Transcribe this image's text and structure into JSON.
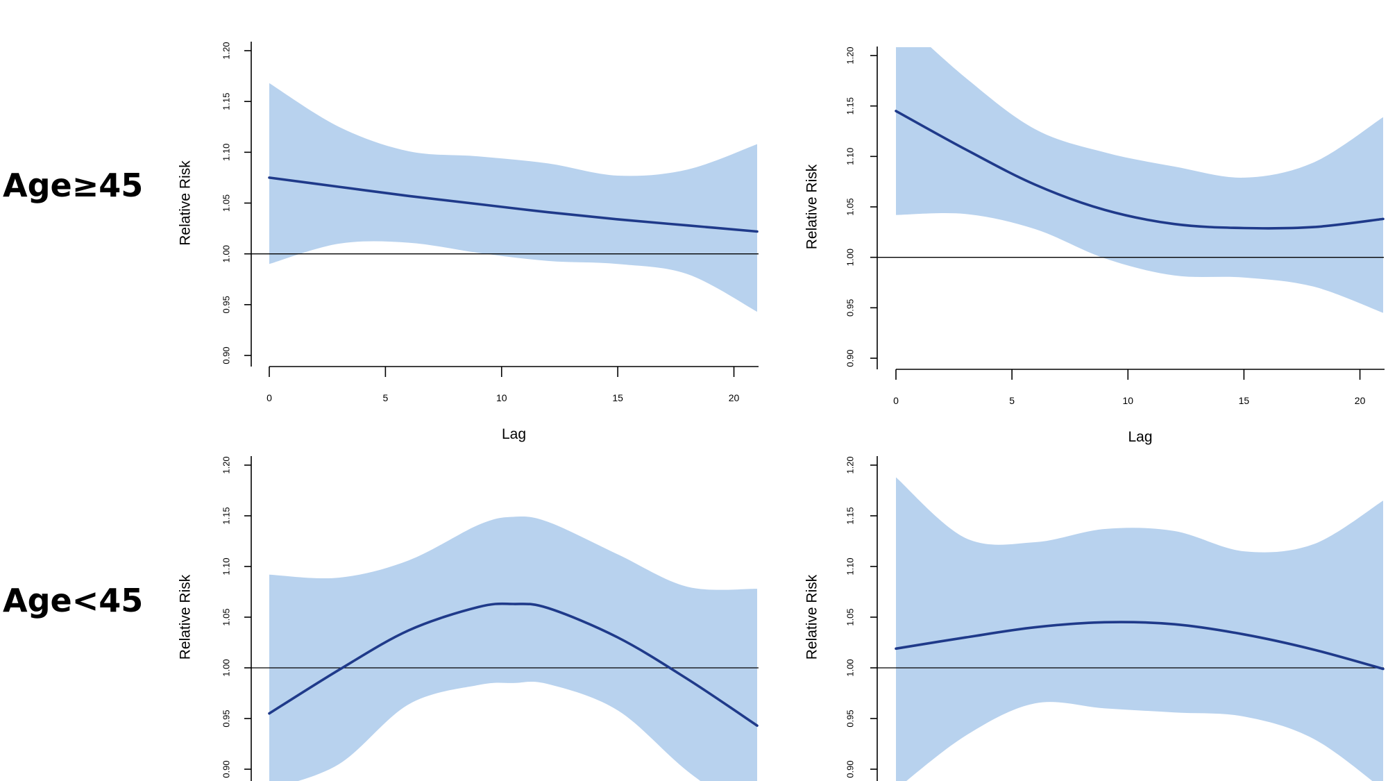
{
  "row_labels": [
    "Age≥45",
    "Age<45"
  ],
  "chart_data": [
    {
      "type": "line",
      "panel": "Age≥45 left",
      "xlabel": "Lag",
      "ylabel": "Relative Risk",
      "xlim": [
        0,
        21
      ],
      "ylim": [
        0.9,
        1.2
      ],
      "x_ticks": [
        "0",
        "5",
        "10",
        "15",
        "20"
      ],
      "y_ticks": [
        "0.90",
        "0.95",
        "1.00",
        "1.05",
        "1.10",
        "1.15",
        "1.20"
      ],
      "reference_line": 1.0,
      "colors": {
        "line": "#1f3a8a",
        "band": "#b8d2ee"
      },
      "x": [
        0,
        3,
        6,
        9,
        12,
        15,
        18,
        21
      ],
      "values": [
        1.075,
        1.066,
        1.057,
        1.049,
        1.041,
        1.034,
        1.028,
        1.022
      ],
      "lower": [
        0.99,
        1.01,
        1.011,
        1.001,
        0.993,
        0.99,
        0.98,
        0.943
      ],
      "upper": [
        1.168,
        1.125,
        1.101,
        1.096,
        1.089,
        1.077,
        1.083,
        1.108
      ]
    },
    {
      "type": "line",
      "panel": "Age≥45 right",
      "xlabel": "Lag",
      "ylabel": "Relative Risk",
      "xlim": [
        0,
        21
      ],
      "ylim": [
        0.9,
        1.2
      ],
      "x_ticks": [
        "0",
        "5",
        "10",
        "15",
        "20"
      ],
      "y_ticks": [
        "0.90",
        "0.95",
        "1.00",
        "1.05",
        "1.10",
        "1.15",
        "1.20"
      ],
      "reference_line": 1.0,
      "colors": {
        "line": "#1f3a8a",
        "band": "#b8d2ee"
      },
      "x": [
        0,
        3,
        6,
        9,
        12,
        15,
        18,
        21
      ],
      "values": [
        1.145,
        1.107,
        1.072,
        1.047,
        1.033,
        1.029,
        1.03,
        1.038
      ],
      "lower": [
        1.042,
        1.043,
        1.028,
        0.999,
        0.982,
        0.98,
        0.971,
        0.945
      ],
      "upper": [
        1.24,
        1.178,
        1.127,
        1.104,
        1.09,
        1.079,
        1.094,
        1.139
      ]
    },
    {
      "type": "line",
      "panel": "Age<45 left",
      "xlabel": "",
      "ylabel": "Relative Risk",
      "xlim": [
        0,
        21
      ],
      "ylim": [
        0.9,
        1.2
      ],
      "y_ticks": [
        "0.90",
        "0.95",
        "1.00",
        "1.05",
        "1.10",
        "1.15",
        "1.20"
      ],
      "reference_line": 1.0,
      "colors": {
        "line": "#1f3a8a",
        "band": "#b8d2ee"
      },
      "x": [
        0,
        3,
        6,
        9,
        10.5,
        12,
        15,
        18,
        21
      ],
      "values": [
        0.955,
        0.998,
        1.037,
        1.06,
        1.063,
        1.059,
        1.03,
        0.989,
        0.943
      ],
      "lower": [
        0.88,
        0.905,
        0.964,
        0.983,
        0.985,
        0.984,
        0.958,
        0.898,
        0.85
      ],
      "upper": [
        1.092,
        1.089,
        1.106,
        1.141,
        1.149,
        1.144,
        1.112,
        1.08,
        1.078
      ]
    },
    {
      "type": "line",
      "panel": "Age<45 right",
      "xlabel": "",
      "ylabel": "Relative Risk",
      "xlim": [
        0,
        21
      ],
      "ylim": [
        0.9,
        1.2
      ],
      "y_ticks": [
        "0.90",
        "0.95",
        "1.00",
        "1.05",
        "1.10",
        "1.15",
        "1.20"
      ],
      "reference_line": 1.0,
      "colors": {
        "line": "#1f3a8a",
        "band": "#b8d2ee"
      },
      "x": [
        0,
        3,
        6,
        9,
        12,
        15,
        18,
        21
      ],
      "values": [
        1.019,
        1.03,
        1.04,
        1.045,
        1.043,
        1.033,
        1.018,
        0.999
      ],
      "lower": [
        0.88,
        0.933,
        0.965,
        0.96,
        0.956,
        0.952,
        0.93,
        0.88
      ],
      "upper": [
        1.188,
        1.128,
        1.124,
        1.137,
        1.135,
        1.115,
        1.122,
        1.165
      ]
    }
  ]
}
